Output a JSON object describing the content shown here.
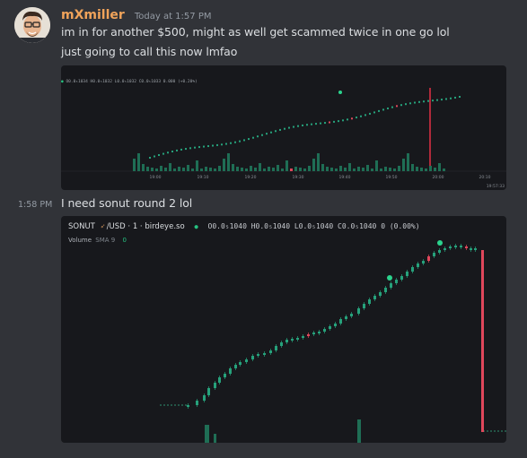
{
  "message1": {
    "username": "mXmiller",
    "timestamp": "Today at 1:57 PM",
    "lines": [
      "im in for another $500, might as well get scammed twice in one go lol",
      "just going to call this now lmfao"
    ]
  },
  "message2": {
    "side_time": "1:58 PM",
    "text": "I need sonut round 2 lol"
  },
  "chart1": {
    "legend": "O0.0₅1034 H0.0₅1032 L0.0₅1032 C0.0₅1033 0.000 (+0.20%)",
    "x_ticks": [
      "19:00",
      "19:10",
      "19:20",
      "19:30",
      "19:40",
      "19:50",
      "20:00",
      "20:10"
    ],
    "corner_label": "19:57:33"
  },
  "chart2": {
    "symbol": "SONUT",
    "pair": "/USD · 1 · birdeye.so",
    "ohlc": "O0.0₅1040 H0.0₅1040 L0.0₅1040 C0.0₅1040 0 (0.00%)",
    "volume_label": "Volume",
    "volume_sma": "SMA 9",
    "volume_value": "0",
    "colors": {
      "up": "#26a17b",
      "down": "#e0475b",
      "background": "#17181c"
    }
  }
}
